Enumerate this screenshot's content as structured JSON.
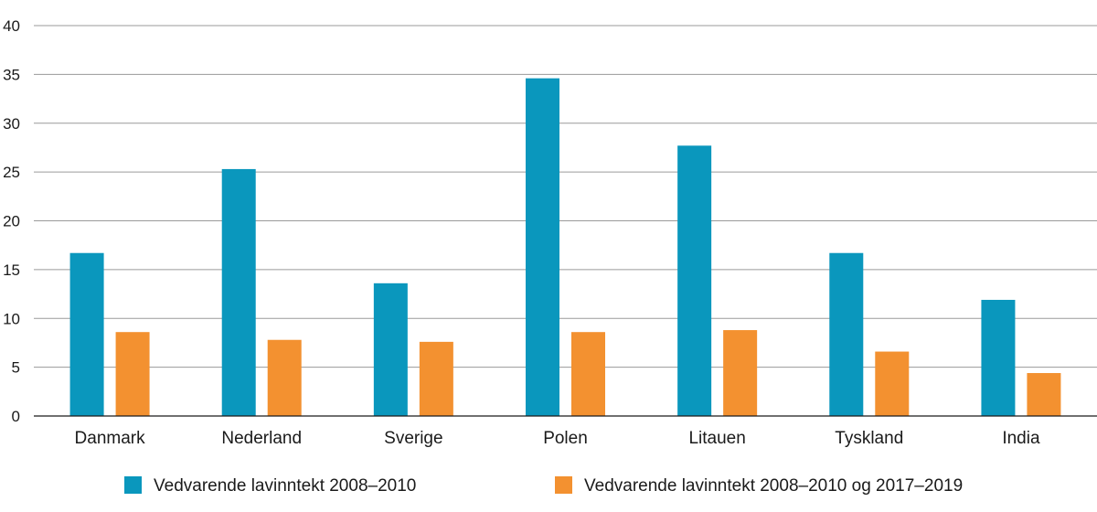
{
  "chart_data": {
    "type": "bar",
    "categories": [
      "Danmark",
      "Nederland",
      "Sverige",
      "Polen",
      "Litauen",
      "Tyskland",
      "India"
    ],
    "series": [
      {
        "name": "Vedvarende lavinntekt 2008–2010",
        "color": "#0a97bd",
        "values": [
          16.7,
          25.3,
          13.6,
          34.6,
          27.7,
          16.7,
          11.9
        ]
      },
      {
        "name": "Vedvarende lavinntekt 2008–2010 og 2017–2019",
        "color": "#f39130",
        "values": [
          8.6,
          7.8,
          7.6,
          8.6,
          8.8,
          6.6,
          4.4
        ]
      }
    ],
    "ylim": [
      0,
      40
    ],
    "yticks": [
      0,
      5,
      10,
      15,
      20,
      25,
      30,
      35,
      40
    ],
    "grid": true,
    "legend": "bottom",
    "title": "",
    "xlabel": "",
    "ylabel": ""
  }
}
